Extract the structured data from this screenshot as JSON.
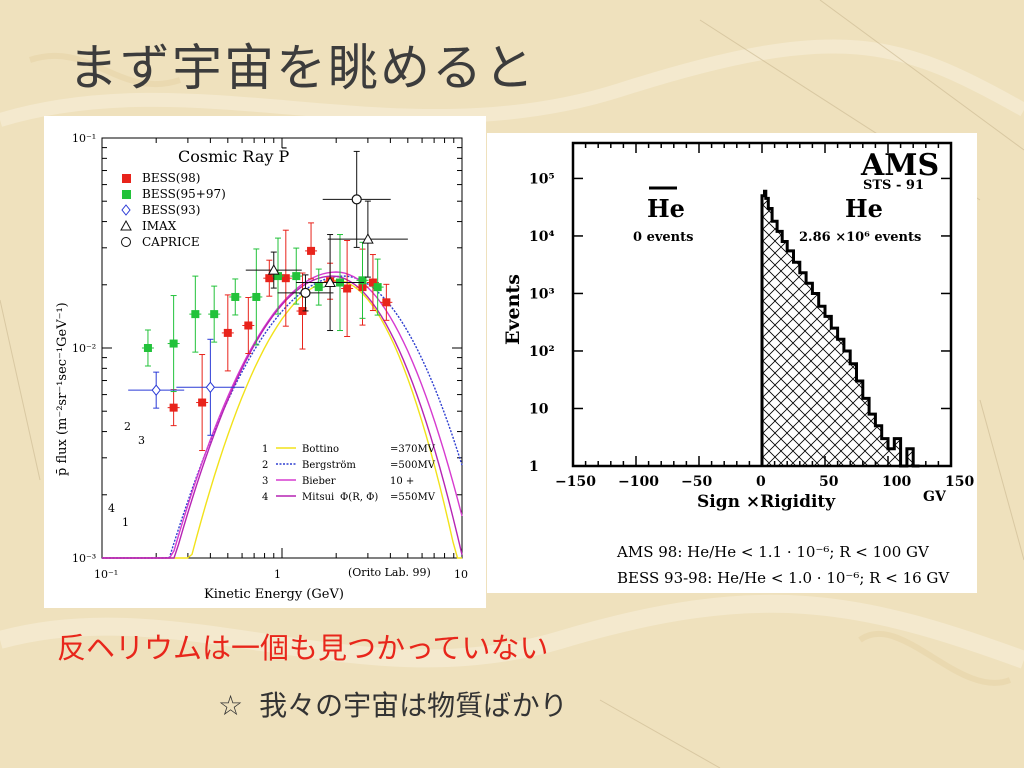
{
  "slide": {
    "title": "まず宇宙を眺めると",
    "caption_main": "反ヘリウムは一個も見つかっていない",
    "caption_sub_bullet": "☆",
    "caption_sub": "我々の宇宙は物質ばかり"
  },
  "chart_data": [
    {
      "type": "scatter",
      "title": "Cosmic Ray P̄",
      "xlabel": "Kinetic Energy (GeV)",
      "ylabel": "p̄ flux (m⁻²sr⁻¹sec⁻¹GeV⁻¹)",
      "xscale": "log",
      "yscale": "log",
      "xlim": [
        0.1,
        10
      ],
      "ylim": [
        0.001,
        0.1
      ],
      "x_ticks": [
        "10⁻¹",
        "1",
        "10"
      ],
      "y_ticks": [
        "10⁻¹",
        "10⁻²",
        "10⁻³"
      ],
      "annotation": "(Orito Lab. 99)",
      "legend_placement": "top-left",
      "series": [
        {
          "name": "BESS(98)",
          "color": "#e8231b",
          "marker": "square",
          "points": [
            [
              0.25,
              0.0052
            ],
            [
              0.36,
              0.0055
            ],
            [
              0.5,
              0.0118
            ],
            [
              0.65,
              0.0128
            ],
            [
              0.85,
              0.0215
            ],
            [
              1.05,
              0.0215
            ],
            [
              1.3,
              0.015
            ],
            [
              1.45,
              0.029
            ],
            [
              1.85,
              0.0208
            ],
            [
              2.3,
              0.0192
            ],
            [
              2.8,
              0.0195
            ],
            [
              3.2,
              0.0205
            ],
            [
              3.8,
              0.0165
            ]
          ]
        },
        {
          "name": "BESS(95+97)",
          "color": "#22c23a",
          "marker": "square",
          "points": [
            [
              0.18,
              0.01
            ],
            [
              0.25,
              0.0105
            ],
            [
              0.33,
              0.0145
            ],
            [
              0.42,
              0.0145
            ],
            [
              0.55,
              0.0175
            ],
            [
              0.72,
              0.0175
            ],
            [
              0.95,
              0.022
            ],
            [
              1.2,
              0.022
            ],
            [
              1.6,
              0.0195
            ],
            [
              2.1,
              0.0205
            ],
            [
              2.8,
              0.021
            ],
            [
              3.4,
              0.0195
            ]
          ]
        },
        {
          "name": "BESS(93)",
          "color": "#2a3ad6",
          "marker": "diamond",
          "points": [
            [
              0.2,
              0.0063
            ],
            [
              0.4,
              0.0065
            ]
          ]
        },
        {
          "name": "IMAX",
          "color": "#111111",
          "marker": "triangle",
          "points": [
            [
              0.9,
              0.0235
            ],
            [
              1.85,
              0.0205
            ],
            [
              3.0,
              0.033
            ]
          ]
        },
        {
          "name": "CAPRICE",
          "color": "#111111",
          "marker": "circle",
          "points": [
            [
              1.35,
              0.0183
            ],
            [
              2.6,
              0.051
            ]
          ]
        }
      ],
      "model_curves": [
        {
          "num": "1",
          "name": "Bottino",
          "param": "=370MV",
          "color": "#f2e21a"
        },
        {
          "num": "2",
          "name": "Bergström",
          "param": "=500MV",
          "color": "#2f3fd0"
        },
        {
          "num": "3",
          "name": "Bieber",
          "param": "10  +",
          "color": "#d63bcf"
        },
        {
          "num": "4",
          "name": "Mitsui",
          "param": "=550MV",
          "color": "#b624b4",
          "sub": "Ф(R, Ф)"
        }
      ]
    },
    {
      "type": "bar",
      "title": "AMS",
      "subtitle": "STS - 91",
      "xlabel": "Sign ×Rigidity",
      "xunit": "GV",
      "ylabel": "Events",
      "yscale": "log",
      "xlim": [
        -150,
        150
      ],
      "ylim": [
        1,
        300000
      ],
      "x_ticks": [
        "−150",
        "−100",
        "−50",
        "0",
        "50",
        "100",
        "150"
      ],
      "y_ticks": [
        "1",
        "10",
        "10²",
        "10³",
        "10⁴",
        "10⁵"
      ],
      "antihelium_label": "He",
      "antihelium_count": "0 events",
      "helium_label": "He",
      "helium_count": "2.86 ×10⁶ events",
      "histogram_x": [
        1,
        2,
        3,
        5,
        8,
        12,
        16,
        20,
        25,
        30,
        35,
        40,
        45,
        50,
        55,
        60,
        65,
        70,
        75,
        80,
        85,
        90,
        95,
        100,
        105,
        110,
        115,
        120
      ],
      "histogram_y": [
        50000,
        60000,
        45000,
        30000,
        18000,
        12000,
        8000,
        5500,
        3500,
        2300,
        1500,
        1000,
        600,
        400,
        250,
        160,
        100,
        60,
        30,
        15,
        8,
        5,
        3,
        2,
        3,
        1,
        2,
        1
      ],
      "limit_ams": "AMS 98:  He/He  <  1.1 · 10⁻⁶; R <  100 GV",
      "limit_bess": "BESS 93-98:  He/He  <  1.0 · 10⁻⁶; R <  16 GV"
    }
  ]
}
